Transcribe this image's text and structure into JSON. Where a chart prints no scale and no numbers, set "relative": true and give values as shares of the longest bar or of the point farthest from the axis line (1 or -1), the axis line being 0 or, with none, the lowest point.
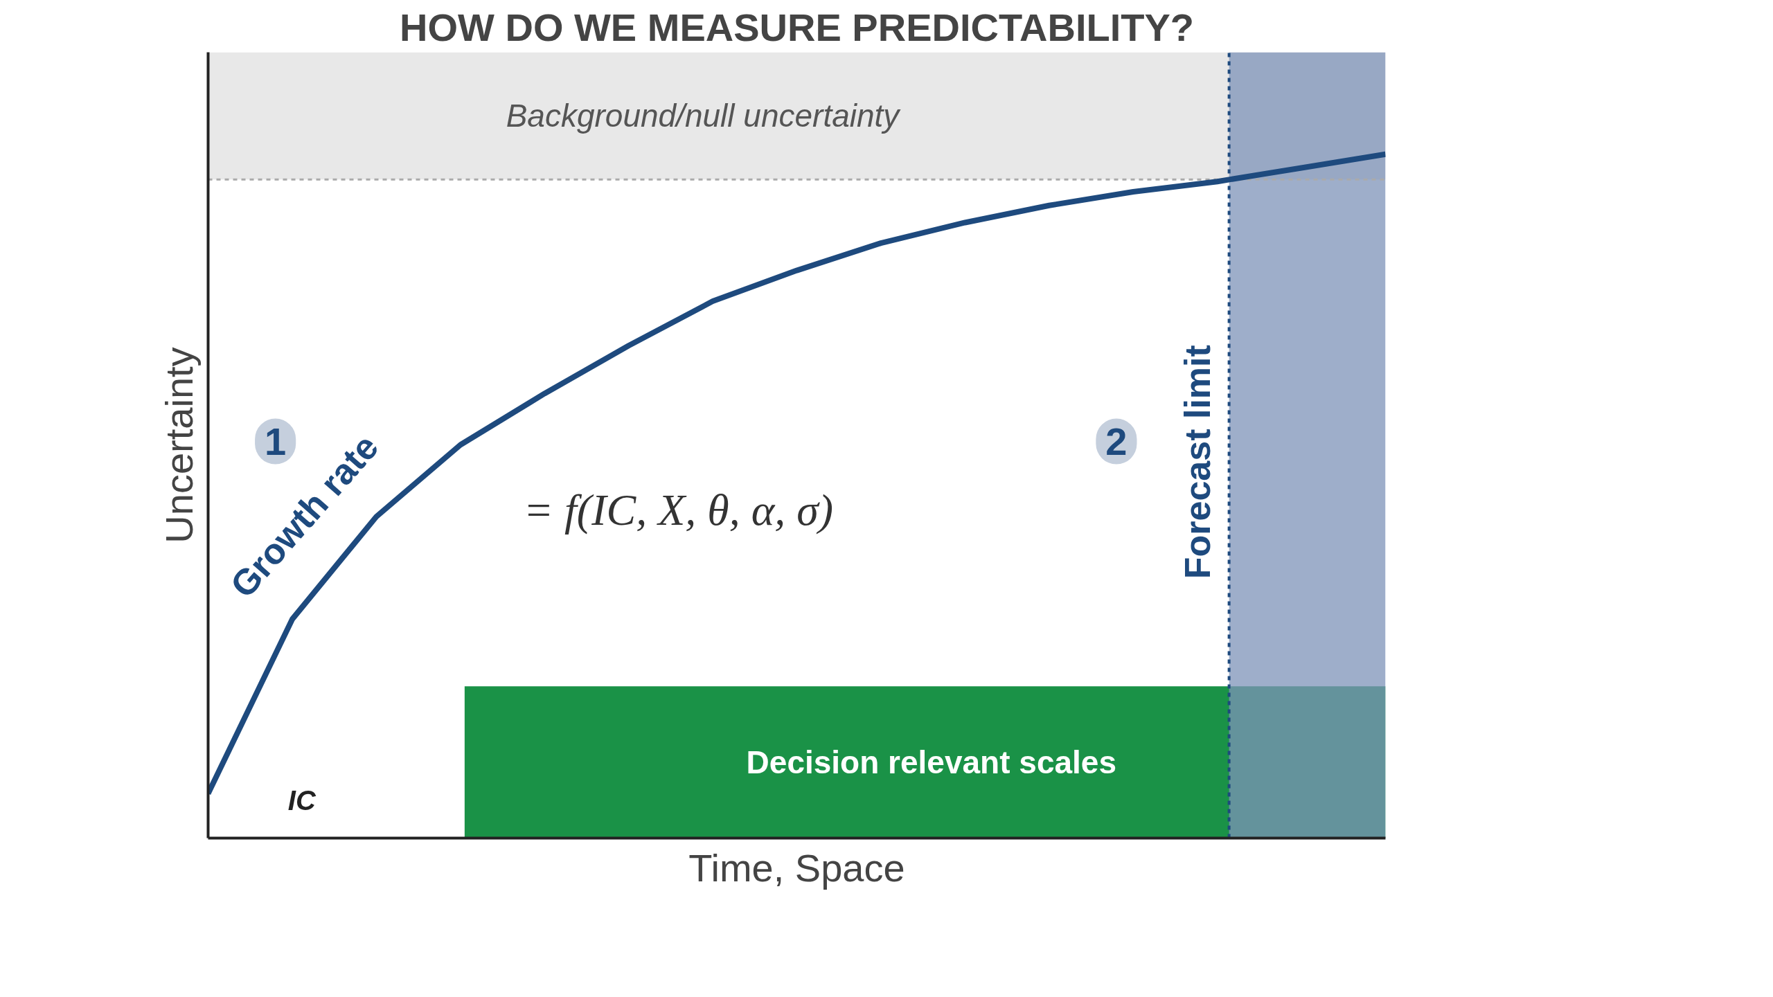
{
  "chart_data": {
    "type": "line",
    "title": "HOW DO WE MEASURE PREDICTABILITY?",
    "xlabel": "Time, Space",
    "ylabel": "Uncertainty",
    "relative": true,
    "categories": [
      null,
      null,
      null,
      null,
      null,
      null,
      null,
      null,
      null,
      null,
      null,
      null,
      null,
      null,
      null
    ],
    "series": [
      {
        "color": "#1e4a7e",
        "values": [
          0.065,
          0.32,
          0.47,
          0.575,
          0.65,
          0.72,
          0.785,
          0.83,
          0.87,
          0.9,
          0.925,
          0.945,
          0.96,
          0.98,
          1.0
        ]
      }
    ],
    "ref_lines": [
      {
        "axis": "y",
        "value": 0.963,
        "color": "#aaaaaa",
        "line_style": "dashed"
      }
    ],
    "bands": [
      {
        "axis": "y",
        "from": 0.963,
        "to": 1.149,
        "label": "Background/null uncertainty",
        "color": "#e8e8e8"
      },
      {
        "axis": "y",
        "from": 0,
        "to": 0.222,
        "label": "Decision relevant scales",
        "color": "#1a9247"
      },
      {
        "axis": "y",
        "from": 0,
        "to": 1.149,
        "color": "#7d93b8"
      }
    ],
    "annotations": [
      "1",
      "2",
      "Growth rate",
      "= f(IC, X, θ, α, σ)",
      "IC",
      "Forecast limit"
    ],
    "grid": false,
    "line_style": "solid",
    "marker": "none"
  }
}
